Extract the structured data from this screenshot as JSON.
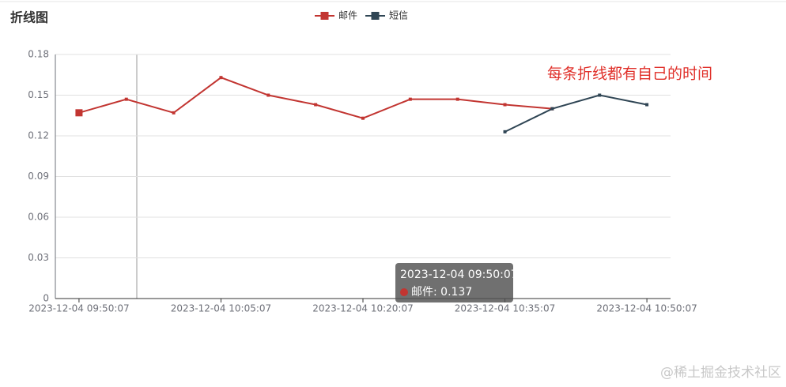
{
  "chart_data": {
    "type": "line",
    "title": "折线图",
    "annotation": "每条折线都有自己的时间",
    "watermark": "@稀土掘金技术社区",
    "tooltip": {
      "title": "2023-12-04 09:50:07",
      "text": "邮件: 0.137"
    },
    "series": [
      {
        "name": "邮件",
        "color": "#c23531",
        "x": [
          "2023-12-04 09:50:07",
          "2023-12-04 09:55:07",
          "2023-12-04 10:00:07",
          "2023-12-04 10:05:07",
          "2023-12-04 10:10:07",
          "2023-12-04 10:15:07",
          "2023-12-04 10:20:07",
          "2023-12-04 10:25:07",
          "2023-12-04 10:30:07",
          "2023-12-04 10:35:07",
          "2023-12-04 10:40:07"
        ],
        "values": [
          0.137,
          0.147,
          0.137,
          0.163,
          0.15,
          0.143,
          0.133,
          0.147,
          0.147,
          0.143,
          0.14
        ]
      },
      {
        "name": "短信",
        "color": "#2f4554",
        "x": [
          "2023-12-04 10:35:07",
          "2023-12-04 10:40:07",
          "2023-12-04 10:45:07",
          "2023-12-04 10:50:07"
        ],
        "values": [
          0.123,
          0.14,
          0.15,
          0.143
        ]
      }
    ],
    "xlim": [
      "2023-12-04 09:47:37",
      "2023-12-04 10:52:37"
    ],
    "xticks": [
      "2023-12-04 09:50:07",
      "2023-12-04 10:05:07",
      "2023-12-04 10:20:07",
      "2023-12-04 10:35:07",
      "2023-12-04 10:50:07"
    ],
    "ylim": [
      0,
      0.18
    ],
    "yticks": [
      0,
      0.03,
      0.06,
      0.09,
      0.12,
      0.15,
      0.18
    ],
    "grid": true
  }
}
